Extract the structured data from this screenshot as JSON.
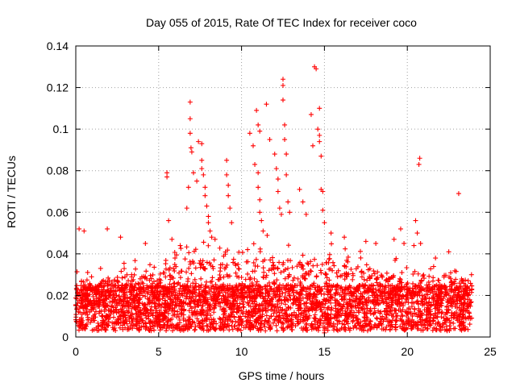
{
  "chart_data": {
    "type": "scatter",
    "title": "Day 055 of 2015, Rate Of TEC Index for receiver coco",
    "xlabel": "GPS time / hours",
    "ylabel": "ROTI / TECUs",
    "xlim": [
      0,
      25
    ],
    "ylim": [
      0,
      0.14
    ],
    "xticks": [
      "0",
      "5",
      "10",
      "15",
      "20",
      "25"
    ],
    "xtick_values": [
      0,
      5,
      10,
      15,
      20,
      25
    ],
    "yticks": [
      "0",
      "0.02",
      "0.04",
      "0.06",
      "0.08",
      "0.1",
      "0.12",
      "0.14"
    ],
    "ytick_values": [
      0,
      0.02,
      0.04,
      0.06,
      0.08,
      0.1,
      0.12,
      0.14
    ],
    "grid": true,
    "marker": "+",
    "color": "#ff0000",
    "time_range_hours": [
      0,
      23.9
    ],
    "series": [
      {
        "points": [
          [
            0.2,
            0.052
          ],
          [
            0.5,
            0.051
          ],
          [
            1.9,
            0.052
          ],
          [
            2.7,
            0.048
          ],
          [
            4.2,
            0.045
          ],
          [
            5.5,
            0.079
          ],
          [
            5.5,
            0.077
          ],
          [
            5.6,
            0.056
          ],
          [
            5.8,
            0.047
          ],
          [
            6.3,
            0.044
          ],
          [
            6.7,
            0.062
          ],
          [
            6.8,
            0.072
          ],
          [
            6.9,
            0.113
          ],
          [
            6.9,
            0.105
          ],
          [
            6.9,
            0.098
          ],
          [
            6.95,
            0.091
          ],
          [
            7.0,
            0.089
          ],
          [
            7.1,
            0.079
          ],
          [
            7.3,
            0.075
          ],
          [
            7.4,
            0.094
          ],
          [
            7.6,
            0.093
          ],
          [
            7.6,
            0.085
          ],
          [
            7.6,
            0.081
          ],
          [
            7.7,
            0.078
          ],
          [
            7.8,
            0.072
          ],
          [
            7.8,
            0.068
          ],
          [
            7.9,
            0.063
          ],
          [
            8.0,
            0.058
          ],
          [
            8.0,
            0.055
          ],
          [
            8.1,
            0.051
          ],
          [
            8.2,
            0.048
          ],
          [
            8.4,
            0.047
          ],
          [
            9.1,
            0.085
          ],
          [
            9.1,
            0.078
          ],
          [
            9.2,
            0.073
          ],
          [
            9.2,
            0.068
          ],
          [
            9.3,
            0.062
          ],
          [
            9.4,
            0.055
          ],
          [
            10.5,
            0.098
          ],
          [
            10.7,
            0.092
          ],
          [
            10.8,
            0.083
          ],
          [
            10.9,
            0.109
          ],
          [
            11.0,
            0.102
          ],
          [
            11.1,
            0.099
          ],
          [
            11.0,
            0.079
          ],
          [
            11.0,
            0.072
          ],
          [
            11.1,
            0.066
          ],
          [
            11.1,
            0.06
          ],
          [
            11.2,
            0.056
          ],
          [
            11.3,
            0.051
          ],
          [
            11.5,
            0.112
          ],
          [
            11.7,
            0.095
          ],
          [
            12.0,
            0.088
          ],
          [
            12.1,
            0.081
          ],
          [
            12.2,
            0.076
          ],
          [
            12.2,
            0.07
          ],
          [
            12.3,
            0.062
          ],
          [
            12.4,
            0.059
          ],
          [
            12.5,
            0.124
          ],
          [
            12.5,
            0.121
          ],
          [
            12.5,
            0.114
          ],
          [
            12.6,
            0.102
          ],
          [
            12.6,
            0.095
          ],
          [
            12.7,
            0.088
          ],
          [
            12.7,
            0.078
          ],
          [
            12.8,
            0.065
          ],
          [
            12.9,
            0.06
          ],
          [
            13.5,
            0.071
          ],
          [
            13.7,
            0.065
          ],
          [
            13.9,
            0.059
          ],
          [
            14.2,
            0.107
          ],
          [
            14.3,
            0.092
          ],
          [
            14.4,
            0.13
          ],
          [
            14.5,
            0.129
          ],
          [
            14.6,
            0.1
          ],
          [
            14.7,
            0.097
          ],
          [
            14.7,
            0.094
          ],
          [
            14.7,
            0.11
          ],
          [
            14.8,
            0.087
          ],
          [
            14.8,
            0.071
          ],
          [
            14.9,
            0.07
          ],
          [
            14.9,
            0.061
          ],
          [
            15.0,
            0.055
          ],
          [
            15.0,
            0.002
          ],
          [
            15.1,
            0.004
          ],
          [
            15.4,
            0.05
          ],
          [
            16.2,
            0.048
          ],
          [
            17.5,
            0.046
          ],
          [
            18.1,
            0.045
          ],
          [
            19.2,
            0.047
          ],
          [
            19.6,
            0.052
          ],
          [
            19.8,
            0.045
          ],
          [
            20.4,
            0.044
          ],
          [
            20.5,
            0.056
          ],
          [
            20.6,
            0.05
          ],
          [
            20.7,
            0.083
          ],
          [
            20.75,
            0.086
          ],
          [
            20.8,
            0.045
          ],
          [
            21.7,
            0.038
          ],
          [
            22.5,
            0.041
          ],
          [
            23.1,
            0.069
          ]
        ]
      }
    ]
  }
}
